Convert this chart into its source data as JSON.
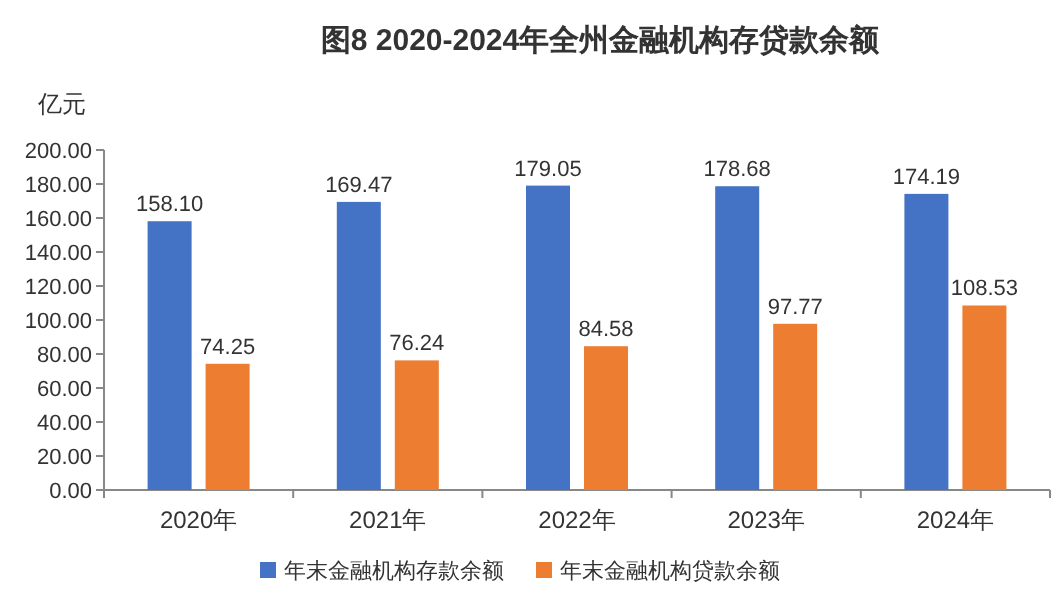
{
  "chart_data": {
    "type": "bar",
    "title": "图8  2020-2024年全州金融机构存贷款余额",
    "ylabel": "亿元",
    "categories": [
      "2020年",
      "2021年",
      "2022年",
      "2023年",
      "2024年"
    ],
    "series": [
      {
        "name": "年末金融机构存款余额",
        "color": "#4472c4",
        "values": [
          158.1,
          169.47,
          179.05,
          178.68,
          174.19
        ],
        "value_labels": [
          "158.10",
          "169.47",
          "179.05",
          "178.68",
          "174.19"
        ]
      },
      {
        "name": "年末金融机构贷款余额",
        "color": "#ed7d31",
        "values": [
          74.25,
          76.24,
          84.58,
          97.77,
          108.53
        ],
        "value_labels": [
          "74.25",
          "76.24",
          "84.58",
          "97.77",
          "108.53"
        ]
      }
    ],
    "ylim": [
      0,
      200
    ],
    "yticks": [
      {
        "value": 0,
        "label": "0.00"
      },
      {
        "value": 20,
        "label": "20.00"
      },
      {
        "value": 40,
        "label": "40.00"
      },
      {
        "value": 60,
        "label": "60.00"
      },
      {
        "value": 80,
        "label": "80.00"
      },
      {
        "value": 100,
        "label": "100.00"
      },
      {
        "value": 120,
        "label": "120.00"
      },
      {
        "value": 140,
        "label": "140.00"
      },
      {
        "value": 160,
        "label": "160.00"
      },
      {
        "value": 180,
        "label": "180.00"
      },
      {
        "value": 200,
        "label": "200.00"
      }
    ],
    "grid": false,
    "legend": "bottom"
  }
}
